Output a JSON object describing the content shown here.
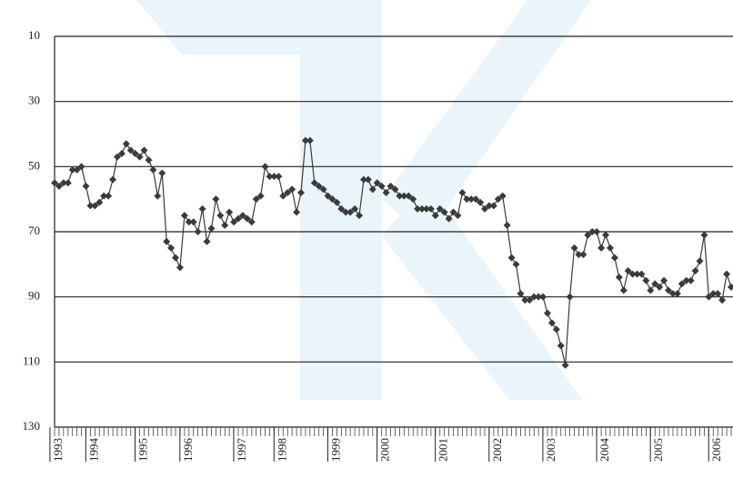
{
  "chart_data": {
    "type": "line",
    "categories": [
      null,
      "1993",
      null,
      null,
      null,
      null,
      null,
      null,
      null,
      "1994",
      null,
      null,
      null,
      null,
      null,
      null,
      null,
      null,
      null,
      null,
      "1995",
      null,
      null,
      null,
      null,
      null,
      null,
      null,
      null,
      null,
      "1996",
      null,
      null,
      null,
      null,
      null,
      null,
      null,
      null,
      null,
      null,
      null,
      "1997",
      null,
      null,
      null,
      null,
      null,
      null,
      null,
      null,
      "1998",
      null,
      null,
      null,
      null,
      null,
      null,
      null,
      null,
      null,
      null,
      null,
      "1999",
      null,
      null,
      null,
      null,
      null,
      null,
      null,
      null,
      null,
      null,
      "2000",
      null,
      null,
      null,
      null,
      null,
      null,
      null,
      null,
      null,
      null,
      null,
      null,
      "2001",
      null,
      null,
      null,
      null,
      null,
      null,
      null,
      null,
      null,
      null,
      null,
      "2002",
      null,
      null,
      null,
      null,
      null,
      null,
      null,
      null,
      null,
      null,
      null,
      "2003",
      null,
      null,
      null,
      null,
      null,
      null,
      null,
      null,
      null,
      null,
      null,
      "2004",
      null,
      null,
      null,
      null,
      null,
      null,
      null,
      null,
      null,
      null,
      null,
      "2005",
      null,
      null,
      null,
      null,
      null,
      null,
      null,
      null,
      null,
      null,
      null,
      null,
      "2006",
      null,
      null,
      null
    ],
    "values": [
      55,
      56,
      55,
      55,
      51,
      51,
      50,
      56,
      62,
      62,
      61,
      59,
      59,
      54,
      47,
      46,
      43,
      45,
      46,
      47,
      45,
      48,
      51,
      59,
      52,
      73,
      75,
      78,
      81,
      65,
      67,
      67,
      70,
      63,
      73,
      69,
      60,
      65,
      68,
      64,
      67,
      66,
      65,
      66,
      67,
      60,
      59,
      50,
      53,
      53,
      53,
      59,
      58,
      57,
      64,
      58,
      42,
      42,
      55,
      56,
      57,
      59,
      60,
      61,
      63,
      64,
      64,
      63,
      65,
      54,
      54,
      57,
      55,
      56,
      58,
      56,
      57,
      59,
      59,
      59,
      60,
      63,
      63,
      63,
      63,
      65,
      63,
      64,
      66,
      64,
      65,
      58,
      60,
      60,
      60,
      61,
      63,
      62,
      62,
      60,
      59,
      68,
      78,
      80,
      89,
      91,
      91,
      90,
      90,
      90,
      95,
      98,
      100,
      105,
      111,
      90,
      75,
      77,
      77,
      71,
      70,
      70,
      75,
      71,
      75,
      78,
      84,
      88,
      82,
      83,
      83,
      83,
      85,
      88,
      86,
      87,
      85,
      88,
      89,
      89,
      86,
      85,
      85,
      82,
      79,
      71,
      90,
      89,
      89,
      91,
      83,
      87
    ],
    "color": "#3a3a3a",
    "ylim": [
      10,
      130
    ],
    "yticks": [
      10,
      30,
      50,
      70,
      90,
      110,
      130
    ],
    "y_inverted": true,
    "grid": true
  }
}
